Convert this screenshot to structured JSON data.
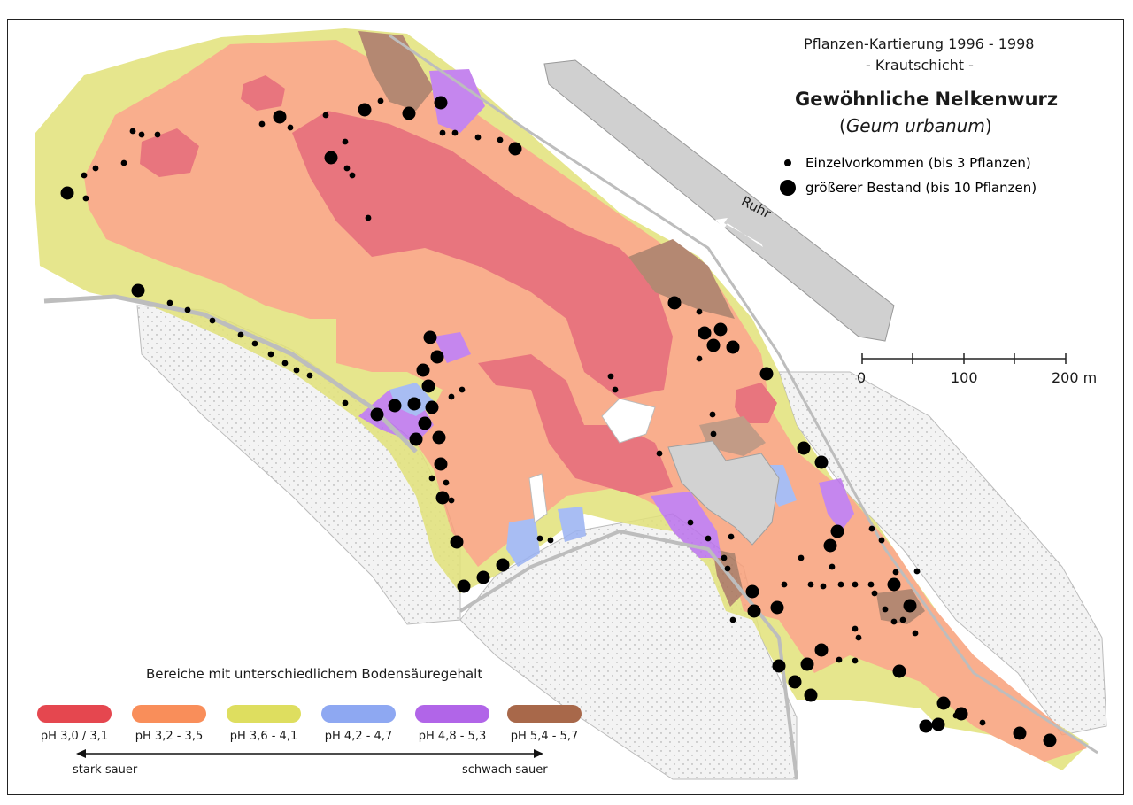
{
  "map": {
    "survey_title": "Pflanzen-Kartierung 1996 - 1998",
    "layer": "- Krautschicht -",
    "species_common": "Gewöhnliche Nelkenwurz",
    "species_latin": "Geum urbanum",
    "river_label": "Ruhr"
  },
  "legend": {
    "small_label": "Einzelvorkommen (bis 3 Pflanzen)",
    "large_label": "größerer Bestand (bis 10 Pflanzen)",
    "soil_title": "Bereiche mit unterschiedlichem Bodensäuregehalt",
    "ph_classes": [
      {
        "label": "pH 3,0 / 3,1",
        "color": "#e5474f"
      },
      {
        "label": "pH 3,2 - 3,5",
        "color": "#f98e5a"
      },
      {
        "label": "pH 3,6 - 4,1",
        "color": "#dede5f"
      },
      {
        "label": "pH 4,2 - 4,7",
        "color": "#8ea8f2"
      },
      {
        "label": "pH 4,8 - 5,3",
        "color": "#b165e8"
      },
      {
        "label": "pH 5,4 - 5,7",
        "color": "#a8684a"
      }
    ],
    "scale_left": "stark sauer",
    "scale_right": "schwach sauer"
  },
  "scale_bar": {
    "labels": [
      "0",
      "100",
      "200 m"
    ]
  }
}
